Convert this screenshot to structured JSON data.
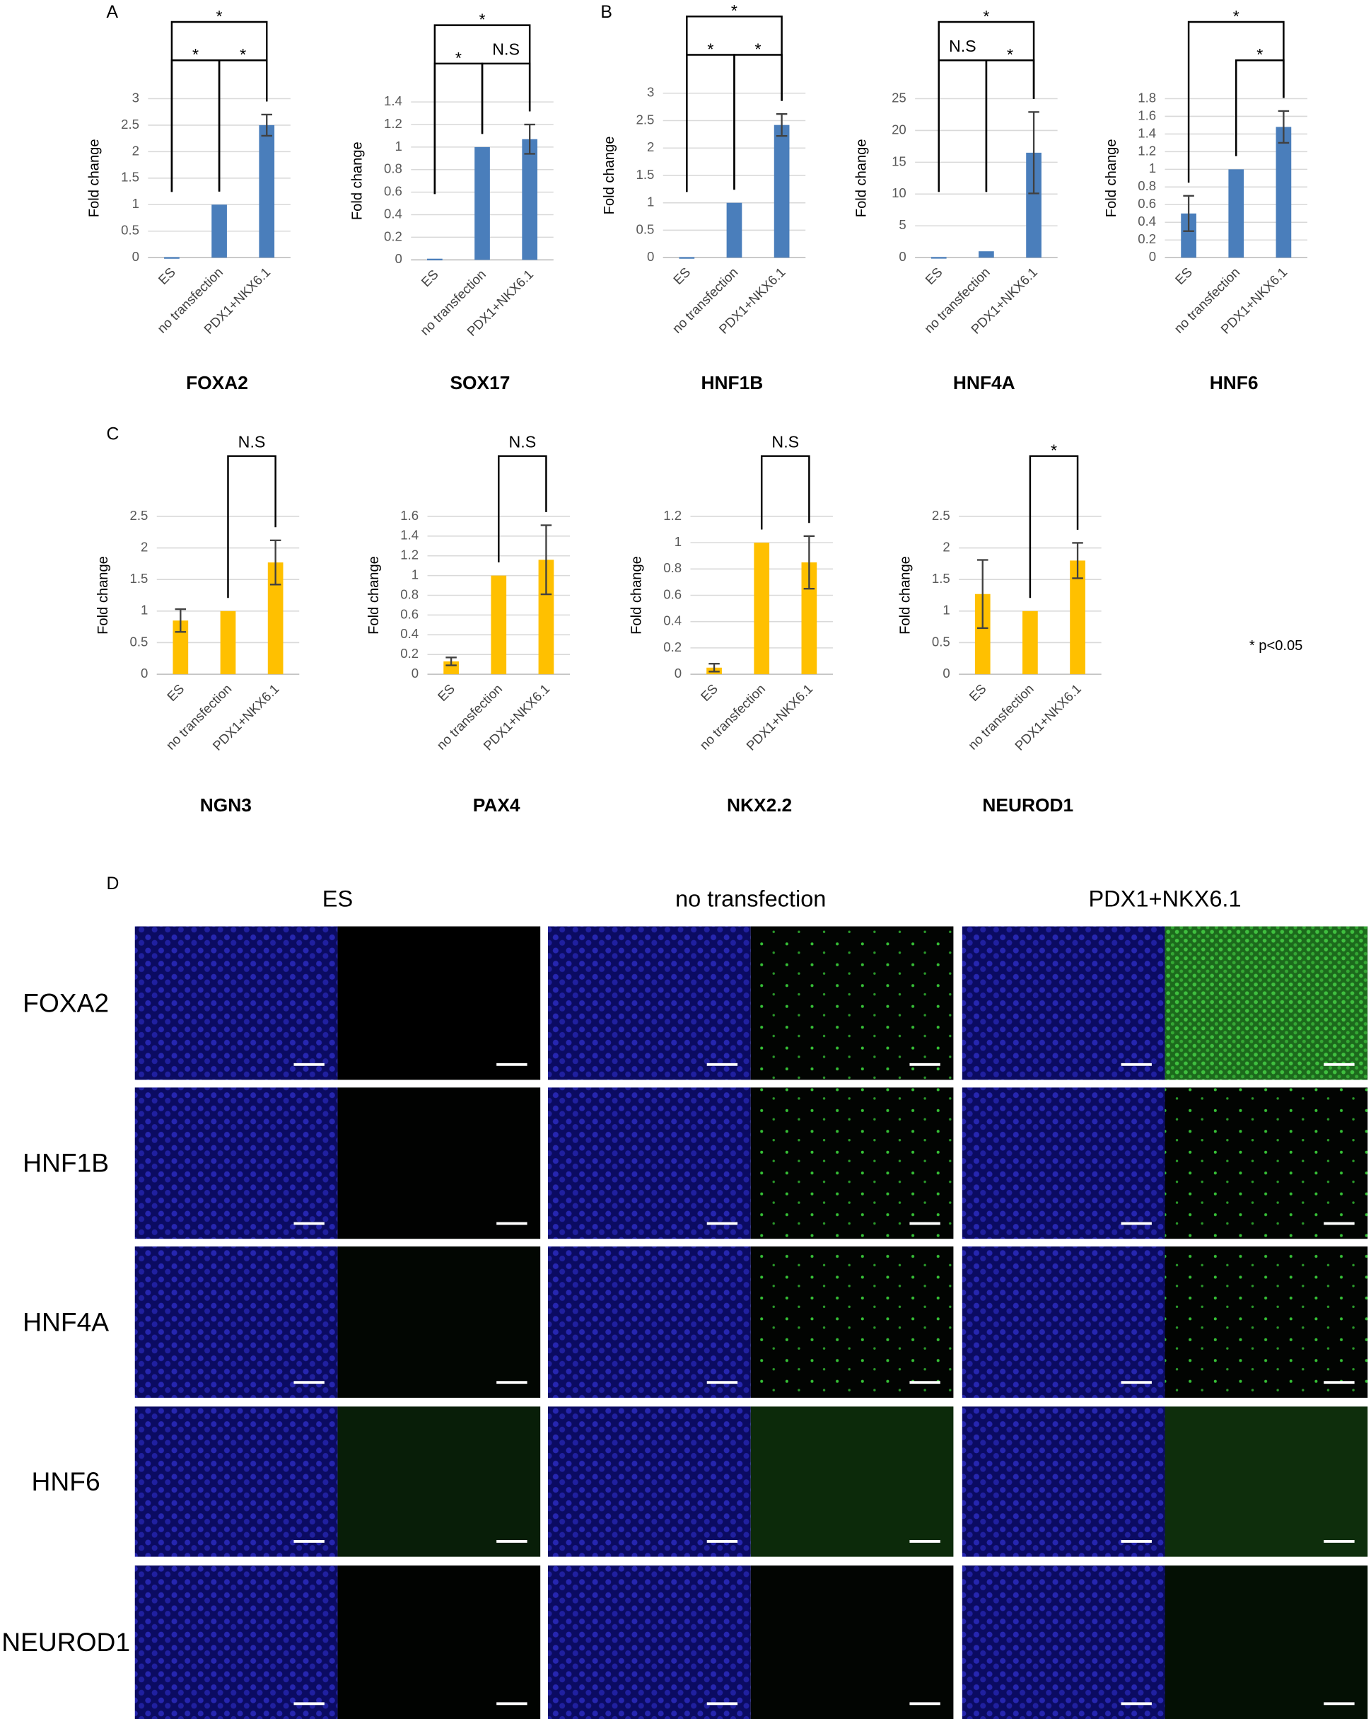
{
  "chart_data": [
    {
      "type": "bar",
      "title": "FOXA2",
      "ylabel": "Fold change",
      "categories": [
        "ES",
        "no transfection",
        "PDX1+NKX6.1"
      ],
      "values": [
        0.01,
        1,
        2.5
      ],
      "errors": [
        null,
        null,
        0.2
      ],
      "color": "#4a7ebb",
      "ylim": [
        0,
        3
      ],
      "yticks": [
        0,
        0.5,
        1,
        1.5,
        2,
        2.5,
        3
      ],
      "grid": true,
      "significance": [
        {
          "pair": [
            0,
            1
          ],
          "label": "*"
        },
        {
          "pair": [
            1,
            2
          ],
          "label": "*"
        },
        {
          "pair": [
            0,
            2
          ],
          "label": "*"
        }
      ]
    },
    {
      "type": "bar",
      "title": "SOX17",
      "ylabel": "Fold change",
      "categories": [
        "ES",
        "no transfection",
        "PDX1+NKX6.1"
      ],
      "values": [
        0.01,
        1,
        1.07
      ],
      "errors": [
        null,
        null,
        0.13
      ],
      "color": "#4a7ebb",
      "ylim": [
        0,
        1.4
      ],
      "yticks": [
        0,
        0.2,
        0.4,
        0.6,
        0.8,
        1,
        1.2,
        1.4
      ],
      "grid": true,
      "significance": [
        {
          "pair": [
            0,
            1
          ],
          "label": "*"
        },
        {
          "pair": [
            1,
            2
          ],
          "label": "N.S"
        },
        {
          "pair": [
            0,
            2
          ],
          "label": "*"
        }
      ]
    },
    {
      "type": "bar",
      "title": "HNF1B",
      "ylabel": "Fold change",
      "categories": [
        "ES",
        "no transfection",
        "PDX1+NKX6.1"
      ],
      "values": [
        0.01,
        1,
        2.42
      ],
      "errors": [
        null,
        null,
        0.2
      ],
      "color": "#4a7ebb",
      "ylim": [
        0,
        3
      ],
      "yticks": [
        0,
        0.5,
        1,
        1.5,
        2,
        2.5,
        3
      ],
      "grid": true,
      "significance": [
        {
          "pair": [
            0,
            1
          ],
          "label": "*"
        },
        {
          "pair": [
            1,
            2
          ],
          "label": "*"
        },
        {
          "pair": [
            0,
            2
          ],
          "label": "*"
        }
      ]
    },
    {
      "type": "bar",
      "title": "HNF4A",
      "ylabel": "Fold change",
      "categories": [
        "ES",
        "no transfection",
        "PDX1+NKX6.1"
      ],
      "values": [
        0.1,
        1,
        16.5
      ],
      "errors": [
        null,
        null,
        6.4
      ],
      "color": "#4a7ebb",
      "ylim": [
        0,
        25
      ],
      "yticks": [
        0,
        5,
        10,
        15,
        20,
        25
      ],
      "grid": true,
      "significance": [
        {
          "pair": [
            0,
            1
          ],
          "label": "N.S"
        },
        {
          "pair": [
            1,
            2
          ],
          "label": "*"
        },
        {
          "pair": [
            0,
            2
          ],
          "label": "*"
        }
      ]
    },
    {
      "type": "bar",
      "title": "HNF6",
      "ylabel": "Fold change",
      "categories": [
        "ES",
        "no transfection",
        "PDX1+NKX6.1"
      ],
      "values": [
        0.5,
        1,
        1.48
      ],
      "errors": [
        0.2,
        null,
        0.18
      ],
      "color": "#4a7ebb",
      "ylim": [
        0,
        1.8
      ],
      "yticks": [
        0,
        0.2,
        0.4,
        0.6,
        0.8,
        1,
        1.2,
        1.4,
        1.6,
        1.8
      ],
      "grid": true,
      "significance": [
        {
          "pair": [
            1,
            2
          ],
          "label": "*"
        },
        {
          "pair": [
            0,
            2
          ],
          "label": "*"
        }
      ]
    },
    {
      "type": "bar",
      "title": "NGN3",
      "ylabel": "Fold change",
      "categories": [
        "ES",
        "no transfection",
        "PDX1+NKX6.1"
      ],
      "values": [
        0.85,
        1,
        1.77
      ],
      "errors": [
        0.18,
        null,
        0.35
      ],
      "color": "#ffc000",
      "ylim": [
        0,
        2.5
      ],
      "yticks": [
        0,
        0.5,
        1,
        1.5,
        2,
        2.5
      ],
      "grid": true,
      "significance": [
        {
          "pair": [
            1,
            2
          ],
          "label": "N.S"
        }
      ]
    },
    {
      "type": "bar",
      "title": "PAX4",
      "ylabel": "Fold change",
      "categories": [
        "ES",
        "no transfection",
        "PDX1+NKX6.1"
      ],
      "values": [
        0.13,
        1,
        1.16
      ],
      "errors": [
        0.04,
        null,
        0.35
      ],
      "color": "#ffc000",
      "ylim": [
        0,
        1.6
      ],
      "yticks": [
        0,
        0.2,
        0.4,
        0.6,
        0.8,
        1,
        1.2,
        1.4,
        1.6
      ],
      "grid": true,
      "significance": [
        {
          "pair": [
            1,
            2
          ],
          "label": "N.S"
        }
      ]
    },
    {
      "type": "bar",
      "title": "NKX2.2",
      "ylabel": "Fold change",
      "categories": [
        "ES",
        "no transfection",
        "PDX1+NKX6.1"
      ],
      "values": [
        0.05,
        1,
        0.85
      ],
      "errors": [
        0.03,
        null,
        0.2
      ],
      "color": "#ffc000",
      "ylim": [
        0,
        1.2
      ],
      "yticks": [
        0,
        0.2,
        0.4,
        0.6,
        0.8,
        1,
        1.2
      ],
      "grid": true,
      "significance": [
        {
          "pair": [
            1,
            2
          ],
          "label": "N.S"
        }
      ]
    },
    {
      "type": "bar",
      "title": "NEUROD1",
      "ylabel": "Fold change",
      "categories": [
        "ES",
        "no transfection",
        "PDX1+NKX6.1"
      ],
      "values": [
        1.27,
        1,
        1.8
      ],
      "errors": [
        0.54,
        null,
        0.28
      ],
      "color": "#ffc000",
      "ylim": [
        0,
        2.5
      ],
      "yticks": [
        0,
        0.5,
        1,
        1.5,
        2,
        2.5
      ],
      "grid": true,
      "significance": [
        {
          "pair": [
            1,
            2
          ],
          "label": "*"
        }
      ]
    }
  ],
  "panel_labels": [
    "A",
    "B",
    "C",
    "D"
  ],
  "significance_note": "* p<0.05",
  "image_panel": {
    "columns": [
      "ES",
      "no transfection",
      "PDX1+NKX6.1"
    ],
    "rows": [
      "FOXA2",
      "HNF1B",
      "HNF4A",
      "HNF6",
      "NEUROD1"
    ]
  }
}
